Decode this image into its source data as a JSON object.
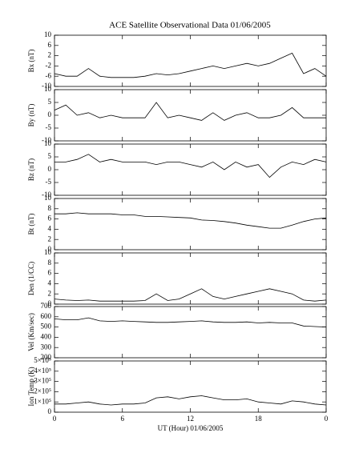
{
  "chart_data": [
    {
      "type": "line",
      "title": "ACE Satellite Observational Data   01/06/2005",
      "ylabel": "Bx (nT)",
      "x": [
        0,
        1,
        2,
        3,
        4,
        5,
        6,
        7,
        8,
        9,
        10,
        11,
        12,
        13,
        14,
        15,
        16,
        17,
        18,
        19,
        20,
        21,
        22,
        23,
        24
      ],
      "series": [
        {
          "color": "#000000",
          "values": [
            -5,
            -6,
            -6,
            -3,
            -6,
            -6.5,
            -6.5,
            -6.5,
            -6,
            -5,
            -5.5,
            -5,
            -4,
            -3,
            -2,
            -3,
            -2,
            -1,
            -2,
            -1,
            1,
            3,
            -5,
            -3,
            -6
          ]
        }
      ],
      "xlim": [
        0,
        24
      ],
      "ylim": [
        -10,
        10
      ],
      "yticks": [
        -10,
        -6,
        -2,
        2,
        6,
        10
      ]
    },
    {
      "type": "line",
      "ylabel": "By (nT)",
      "x": [
        0,
        1,
        2,
        3,
        4,
        5,
        6,
        7,
        8,
        9,
        10,
        11,
        12,
        13,
        14,
        15,
        16,
        17,
        18,
        19,
        20,
        21,
        22,
        23,
        24
      ],
      "series": [
        {
          "color": "#000000",
          "values": [
            2,
            4,
            0,
            1,
            -1,
            0,
            -1,
            -1,
            -1,
            5,
            -1,
            0,
            -1,
            -2,
            1,
            -2,
            0,
            1,
            -1,
            -1,
            0,
            3,
            -1,
            -1,
            -1
          ]
        }
      ],
      "xlim": [
        0,
        24
      ],
      "ylim": [
        -10,
        10
      ],
      "yticks": [
        -10,
        -5,
        0,
        5,
        10
      ]
    },
    {
      "type": "line",
      "ylabel": "Bz (nT)",
      "x": [
        0,
        1,
        2,
        3,
        4,
        5,
        6,
        7,
        8,
        9,
        10,
        11,
        12,
        13,
        14,
        15,
        16,
        17,
        18,
        19,
        20,
        21,
        22,
        23,
        24
      ],
      "series": [
        {
          "color": "#000000",
          "values": [
            3,
            3,
            4,
            6,
            3,
            4,
            3,
            3,
            3,
            2,
            3,
            3,
            2,
            1,
            3,
            0,
            3,
            1,
            2,
            -3,
            1,
            3,
            2,
            4,
            3
          ]
        }
      ],
      "xlim": [
        0,
        24
      ],
      "ylim": [
        -10,
        10
      ],
      "yticks": [
        -10,
        -5,
        0,
        5,
        10
      ]
    },
    {
      "type": "line",
      "ylabel": "Bt (nT)",
      "x": [
        0,
        1,
        2,
        3,
        4,
        5,
        6,
        7,
        8,
        9,
        10,
        11,
        12,
        13,
        14,
        15,
        16,
        17,
        18,
        19,
        20,
        21,
        22,
        23,
        24
      ],
      "series": [
        {
          "color": "#000000",
          "values": [
            7,
            7,
            7.2,
            7,
            7,
            7,
            6.8,
            6.8,
            6.5,
            6.5,
            6.4,
            6.3,
            6.2,
            5.8,
            5.7,
            5.5,
            5.2,
            4.8,
            4.5,
            4.2,
            4.2,
            4.8,
            5.5,
            6,
            6.2
          ]
        }
      ],
      "xlim": [
        0,
        24
      ],
      "ylim": [
        0,
        10
      ],
      "yticks": [
        0,
        2,
        4,
        6,
        8,
        10
      ]
    },
    {
      "type": "line",
      "ylabel": "Den (1/CC)",
      "x": [
        0,
        1,
        2,
        3,
        4,
        5,
        6,
        7,
        8,
        9,
        10,
        11,
        12,
        13,
        14,
        15,
        16,
        17,
        18,
        19,
        20,
        21,
        22,
        23,
        24
      ],
      "series": [
        {
          "color": "#000000",
          "values": [
            1,
            0.8,
            0.7,
            0.8,
            0.6,
            0.6,
            0.6,
            0.6,
            0.7,
            2,
            0.7,
            1,
            2,
            3,
            1.5,
            1,
            1.5,
            2,
            2.5,
            3,
            2.5,
            2,
            0.8,
            0.6,
            0.8
          ]
        }
      ],
      "xlim": [
        0,
        24
      ],
      "ylim": [
        0,
        10
      ],
      "yticks": [
        0,
        2,
        4,
        6,
        8,
        10
      ]
    },
    {
      "type": "line",
      "ylabel": "Vel (Km/sec)",
      "x": [
        0,
        1,
        2,
        3,
        4,
        5,
        6,
        7,
        8,
        9,
        10,
        11,
        12,
        13,
        14,
        15,
        16,
        17,
        18,
        19,
        20,
        21,
        22,
        23,
        24
      ],
      "series": [
        {
          "color": "#000000",
          "values": [
            580,
            570,
            570,
            590,
            560,
            555,
            560,
            555,
            550,
            545,
            545,
            550,
            555,
            560,
            550,
            545,
            545,
            550,
            540,
            545,
            540,
            540,
            510,
            505,
            500
          ]
        }
      ],
      "xlim": [
        0,
        24
      ],
      "ylim": [
        200,
        700
      ],
      "yticks": [
        200,
        300,
        400,
        500,
        600,
        700
      ]
    },
    {
      "type": "line",
      "ylabel": "Ion Temp (K)",
      "xlabel": "UT (Hour)   01/06/2005",
      "x": [
        0,
        1,
        2,
        3,
        4,
        5,
        6,
        7,
        8,
        9,
        10,
        11,
        12,
        13,
        14,
        15,
        16,
        17,
        18,
        19,
        20,
        21,
        22,
        23,
        24
      ],
      "series": [
        {
          "color": "#000000",
          "values": [
            80000,
            80000,
            90000,
            100000,
            80000,
            70000,
            80000,
            80000,
            90000,
            140000,
            150000,
            130000,
            150000,
            160000,
            140000,
            120000,
            120000,
            130000,
            100000,
            90000,
            80000,
            110000,
            100000,
            80000,
            70000
          ]
        }
      ],
      "xlim": [
        0,
        24
      ],
      "xticks": [
        0,
        6,
        12,
        18,
        {
          "value": 24,
          "label": "0"
        }
      ],
      "ylim": [
        0,
        500000
      ],
      "yticks": [
        0,
        {
          "value": 100000,
          "label": "1×10⁵"
        },
        {
          "value": 200000,
          "label": "2×10⁵"
        },
        {
          "value": 300000,
          "label": "3×10⁵"
        },
        {
          "value": 400000,
          "label": "4×10⁵"
        },
        {
          "value": 500000,
          "label": "5×10⁵"
        }
      ]
    }
  ]
}
